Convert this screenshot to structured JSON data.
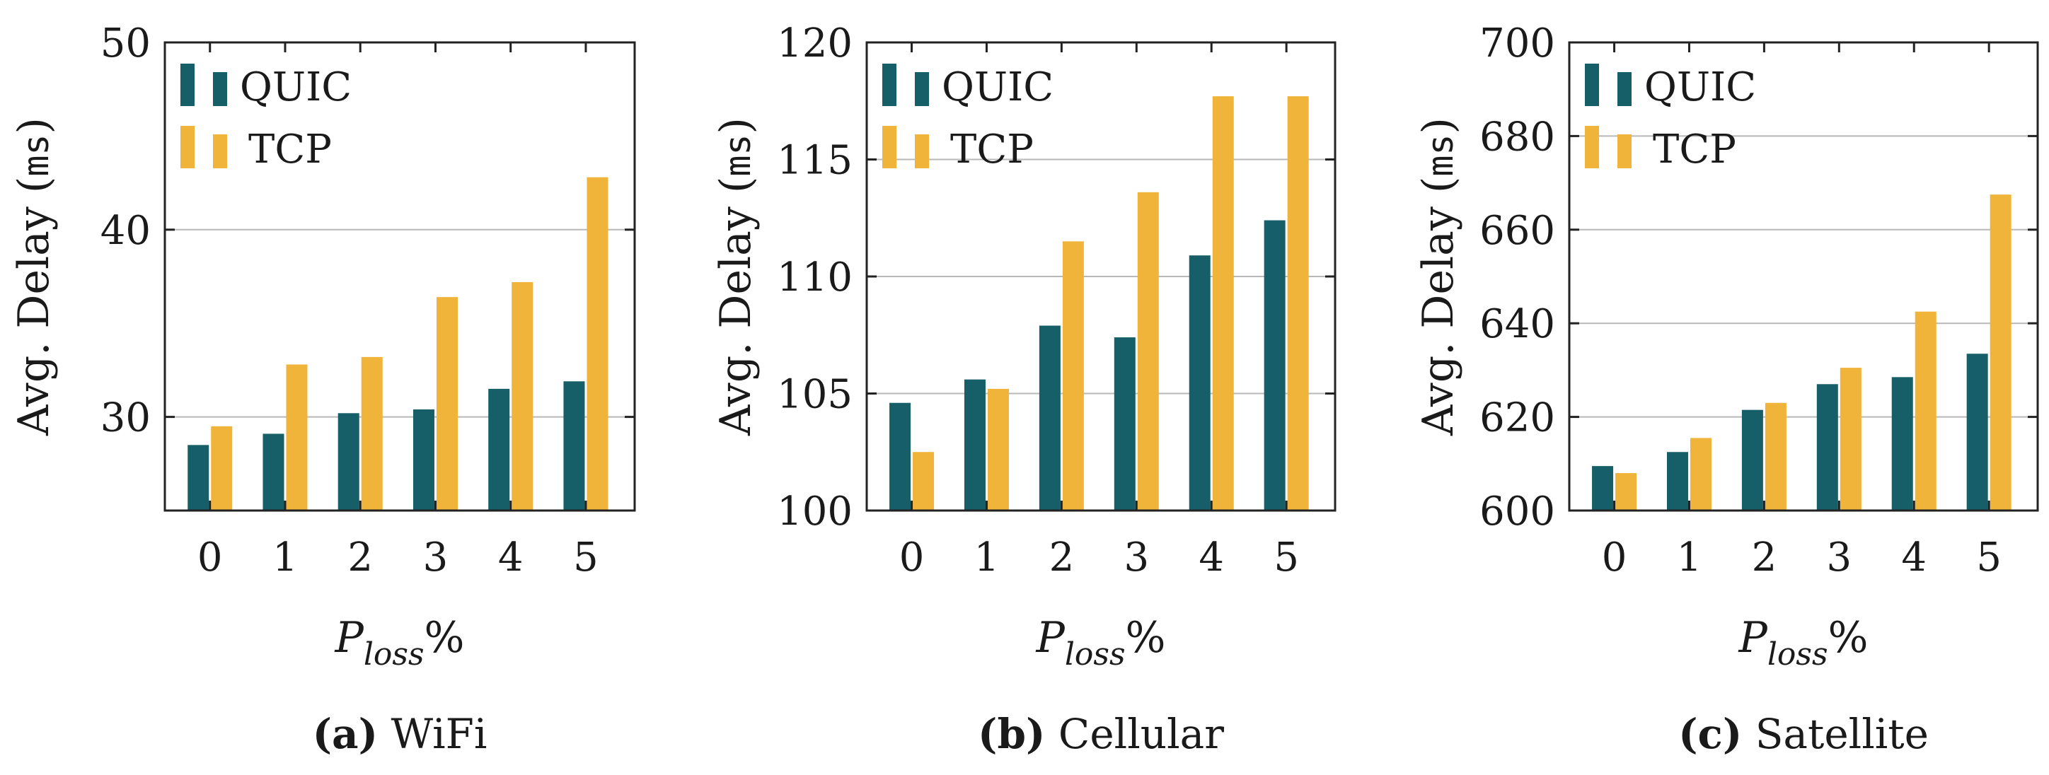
{
  "colors": {
    "QUIC": "#175f68",
    "TCP": "#f0b43a",
    "grid": "#b8b8b8",
    "axis": "#222222"
  },
  "chart_data": [
    {
      "type": "bar",
      "categories": [
        "0",
        "1",
        "2",
        "3",
        "4",
        "5"
      ],
      "series": [
        {
          "name": "QUIC",
          "values": [
            28.5,
            29.1,
            30.2,
            30.4,
            31.5,
            31.9
          ]
        },
        {
          "name": "TCP",
          "values": [
            29.5,
            32.8,
            33.2,
            36.4,
            37.2,
            42.8
          ]
        }
      ],
      "yticks": [
        30,
        40,
        50
      ],
      "ylim": [
        25,
        50
      ],
      "ylabel": "Avg. Delay",
      "ylabel_unit": "ms",
      "xlabel_main": "P",
      "xlabel_sub": "loss",
      "xlabel_suffix": "%",
      "caption_letter": "(a)",
      "caption_text": "WiFi",
      "grid": "horizontal",
      "legend": "top-left"
    },
    {
      "type": "bar",
      "categories": [
        "0",
        "1",
        "2",
        "3",
        "4",
        "5"
      ],
      "series": [
        {
          "name": "QUIC",
          "values": [
            104.6,
            105.6,
            107.9,
            107.4,
            110.9,
            112.4
          ]
        },
        {
          "name": "TCP",
          "values": [
            102.5,
            105.2,
            111.5,
            113.6,
            117.7,
            117.7
          ]
        }
      ],
      "yticks": [
        100,
        105,
        110,
        115,
        120
      ],
      "ylim": [
        100,
        120
      ],
      "ylabel": "Avg. Delay",
      "ylabel_unit": "ms",
      "xlabel_main": "P",
      "xlabel_sub": "loss",
      "xlabel_suffix": "%",
      "caption_letter": "(b)",
      "caption_text": "Cellular",
      "grid": "horizontal",
      "legend": "top-left"
    },
    {
      "type": "bar",
      "categories": [
        "0",
        "1",
        "2",
        "3",
        "4",
        "5"
      ],
      "series": [
        {
          "name": "QUIC",
          "values": [
            609.5,
            612.5,
            621.5,
            627,
            628.5,
            633.5
          ]
        },
        {
          "name": "TCP",
          "values": [
            608,
            615.5,
            623,
            630.5,
            642.5,
            667.5
          ]
        }
      ],
      "yticks": [
        600,
        620,
        640,
        660,
        680,
        700
      ],
      "ylim": [
        600,
        700
      ],
      "ylabel": "Avg. Delay",
      "ylabel_unit": "ms",
      "xlabel_main": "P",
      "xlabel_sub": "loss",
      "xlabel_suffix": "%",
      "caption_letter": "(c)",
      "caption_text": "Satellite",
      "grid": "horizontal",
      "legend": "top-left"
    }
  ]
}
